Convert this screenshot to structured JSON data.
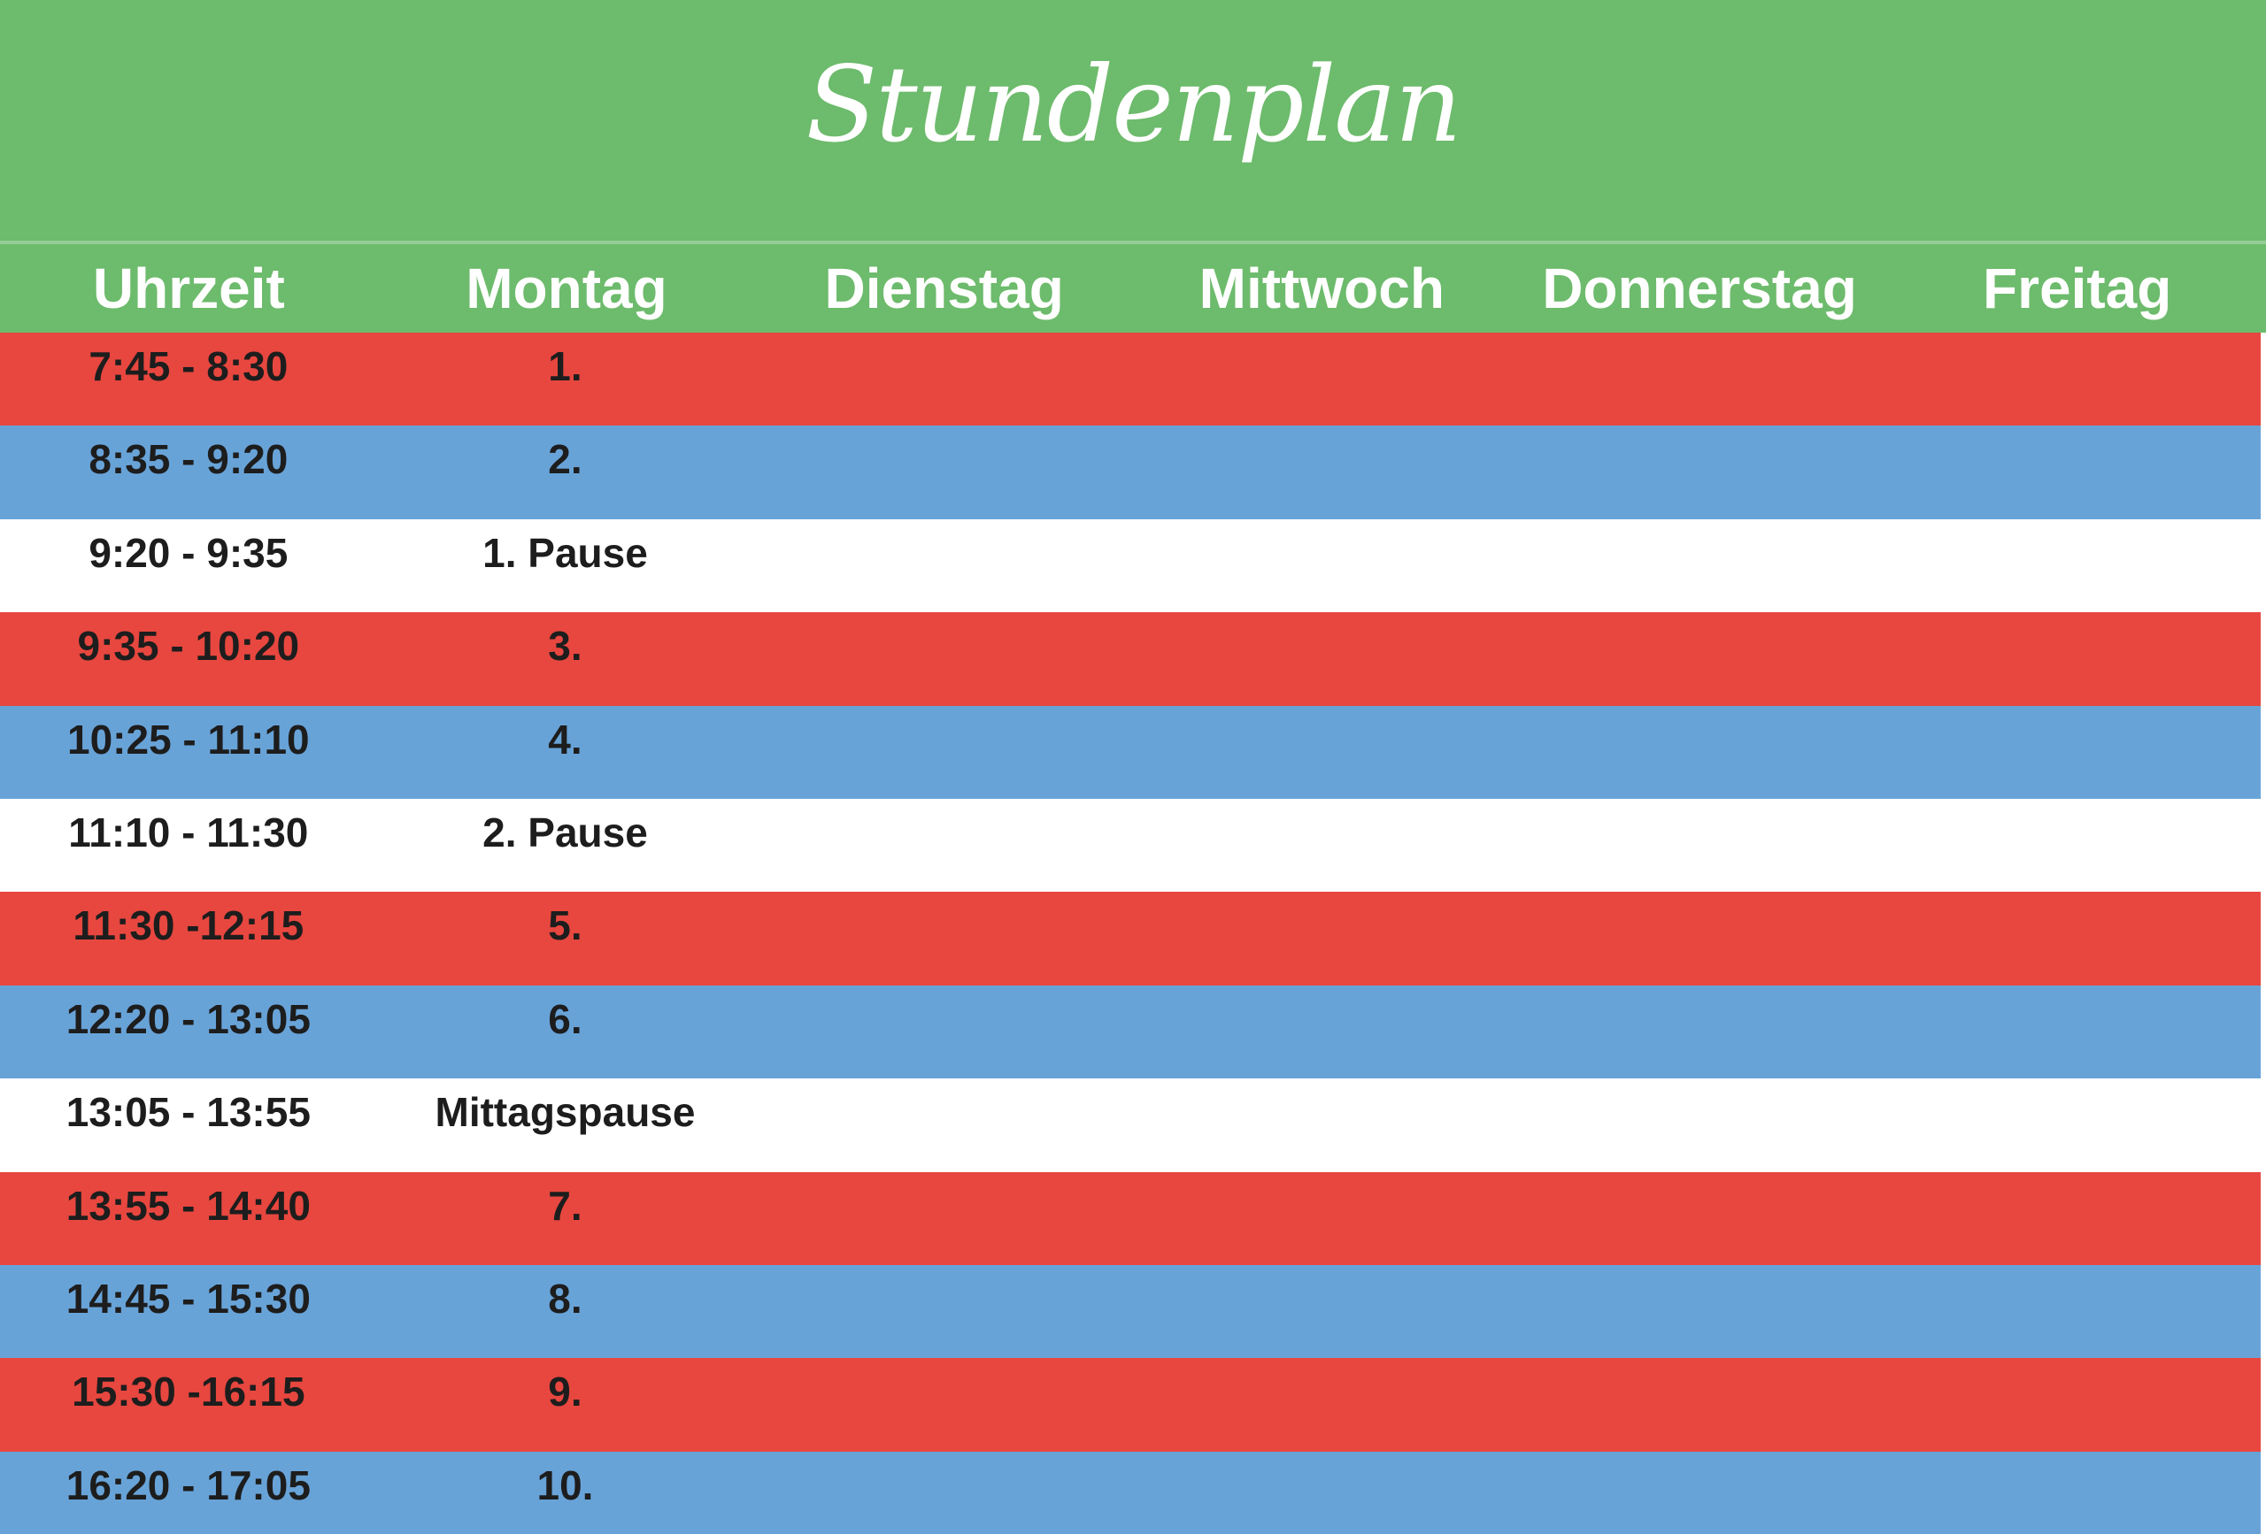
{
  "title": "Stundenplan",
  "colors": {
    "green": "#6dbb6c",
    "red": "#e7473f",
    "blue": "#68a3d8",
    "text": "#1d1d1d",
    "header_text": "#ffffff"
  },
  "header": {
    "columns": [
      "Uhrzeit",
      "Montag",
      "Dienstag",
      "Mittwoch",
      "Donnerstag",
      "Freitag"
    ]
  },
  "rows": [
    {
      "time": "7:45 - 8:30",
      "value": "1.",
      "color": "red"
    },
    {
      "time": "8:35 - 9:20",
      "value": "2.",
      "color": "blue"
    },
    {
      "time": "9:20 - 9:35",
      "value": "1. Pause",
      "color": "white"
    },
    {
      "time": "9:35 - 10:20",
      "value": "3.",
      "color": "red"
    },
    {
      "time": "10:25 - 11:10",
      "value": "4.",
      "color": "blue"
    },
    {
      "time": "11:10 - 11:30",
      "value": "2. Pause",
      "color": "white"
    },
    {
      "time": "11:30 -12:15",
      "value": "5.",
      "color": "red"
    },
    {
      "time": "12:20 - 13:05",
      "value": "6.",
      "color": "blue"
    },
    {
      "time": "13:05 - 13:55",
      "value": "Mittagspause",
      "color": "white"
    },
    {
      "time": "13:55 - 14:40",
      "value": "7.",
      "color": "red"
    },
    {
      "time": "14:45 - 15:30",
      "value": "8.",
      "color": "blue"
    },
    {
      "time": "15:30 -16:15",
      "value": "9.",
      "color": "red"
    },
    {
      "time": "16:20 - 17:05",
      "value": "10.",
      "color": "blue"
    }
  ]
}
